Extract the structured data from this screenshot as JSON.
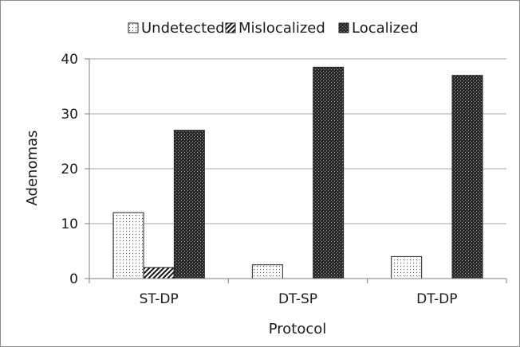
{
  "chart_data": {
    "type": "bar",
    "title": "",
    "xlabel": "Protocol",
    "ylabel": "Adenomas",
    "categories": [
      "ST-DP",
      "DT-SP",
      "DT-DP"
    ],
    "series": [
      {
        "name": "Undetected",
        "values": [
          12,
          2.5,
          4
        ],
        "pattern": "dots"
      },
      {
        "name": "Mislocalized",
        "values": [
          2,
          0,
          0
        ],
        "pattern": "hatch"
      },
      {
        "name": "Localized",
        "values": [
          27,
          38.5,
          37
        ],
        "pattern": "checker"
      }
    ],
    "ylim": [
      0,
      40
    ],
    "yticks": [
      0,
      10,
      20,
      30,
      40
    ],
    "grid": true,
    "legend_position": "top"
  }
}
